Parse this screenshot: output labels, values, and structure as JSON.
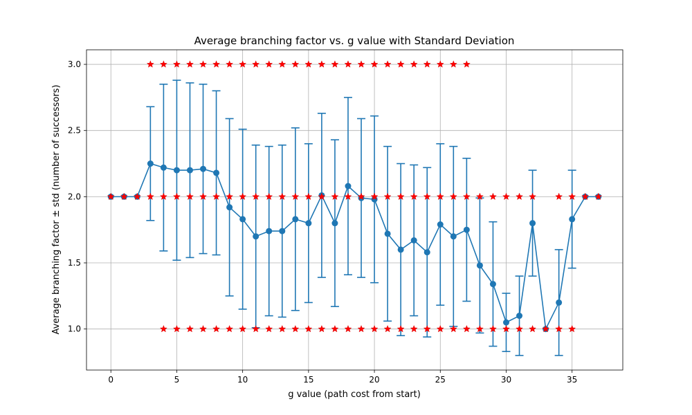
{
  "chart_data": {
    "type": "line",
    "title": "Average branching factor vs. g value with Standard Deviation",
    "xlabel": "g value (path cost from start)",
    "ylabel": "Average branching factor ± std (number of successors)",
    "xlim": [
      -1.85,
      38.85
    ],
    "ylim": [
      0.69,
      3.11
    ],
    "xticks": [
      0,
      5,
      10,
      15,
      20,
      25,
      30,
      35
    ],
    "yticks": [
      1.0,
      1.5,
      2.0,
      2.5,
      3.0
    ],
    "xtick_labels": [
      "0",
      "5",
      "10",
      "15",
      "20",
      "25",
      "30",
      "35"
    ],
    "ytick_labels": [
      "1.0",
      "1.5",
      "2.0",
      "2.5",
      "3.0"
    ],
    "grid": true,
    "series": [
      {
        "color": "#1f77b4",
        "marker": "circle",
        "x": [
          0,
          1,
          2,
          3,
          4,
          5,
          6,
          7,
          8,
          9,
          10,
          11,
          12,
          13,
          14,
          15,
          16,
          17,
          18,
          19,
          20,
          21,
          22,
          23,
          24,
          25,
          26,
          27,
          28,
          29,
          30,
          31,
          32,
          33,
          34,
          35,
          36,
          37
        ],
        "y": [
          2.0,
          2.0,
          2.0,
          2.25,
          2.22,
          2.2,
          2.2,
          2.21,
          2.18,
          1.92,
          1.83,
          1.7,
          1.74,
          1.74,
          1.83,
          1.8,
          2.01,
          1.8,
          2.08,
          1.99,
          1.98,
          1.72,
          1.6,
          1.67,
          1.58,
          1.79,
          1.7,
          1.75,
          1.48,
          1.34,
          1.05,
          1.1,
          1.8,
          1.0,
          1.2,
          1.83,
          2.0,
          2.0
        ],
        "std": [
          0,
          0,
          0,
          0.43,
          0.63,
          0.68,
          0.66,
          0.64,
          0.62,
          0.67,
          0.68,
          0.69,
          0.64,
          0.65,
          0.69,
          0.6,
          0.62,
          0.63,
          0.67,
          0.6,
          0.63,
          0.66,
          0.65,
          0.57,
          0.64,
          0.61,
          0.68,
          0.54,
          0.51,
          0.47,
          0.22,
          0.3,
          0.4,
          0,
          0.4,
          0.37,
          0,
          0
        ]
      },
      {
        "color": "#ff0000",
        "marker": "star",
        "points": [
          {
            "x": 0,
            "y": 2.0
          },
          {
            "x": 1,
            "y": 2.0
          },
          {
            "x": 2,
            "y": 2.0
          },
          {
            "x": 3,
            "y": 2.0
          },
          {
            "x": 3,
            "y": 3.0
          },
          {
            "x": 4,
            "y": 1.0
          },
          {
            "x": 4,
            "y": 2.0
          },
          {
            "x": 4,
            "y": 3.0
          },
          {
            "x": 5,
            "y": 1.0
          },
          {
            "x": 5,
            "y": 2.0
          },
          {
            "x": 5,
            "y": 3.0
          },
          {
            "x": 6,
            "y": 1.0
          },
          {
            "x": 6,
            "y": 2.0
          },
          {
            "x": 6,
            "y": 3.0
          },
          {
            "x": 7,
            "y": 1.0
          },
          {
            "x": 7,
            "y": 2.0
          },
          {
            "x": 7,
            "y": 3.0
          },
          {
            "x": 8,
            "y": 1.0
          },
          {
            "x": 8,
            "y": 2.0
          },
          {
            "x": 8,
            "y": 3.0
          },
          {
            "x": 9,
            "y": 1.0
          },
          {
            "x": 9,
            "y": 2.0
          },
          {
            "x": 9,
            "y": 3.0
          },
          {
            "x": 10,
            "y": 1.0
          },
          {
            "x": 10,
            "y": 2.0
          },
          {
            "x": 10,
            "y": 3.0
          },
          {
            "x": 11,
            "y": 1.0
          },
          {
            "x": 11,
            "y": 2.0
          },
          {
            "x": 11,
            "y": 3.0
          },
          {
            "x": 12,
            "y": 1.0
          },
          {
            "x": 12,
            "y": 2.0
          },
          {
            "x": 12,
            "y": 3.0
          },
          {
            "x": 13,
            "y": 1.0
          },
          {
            "x": 13,
            "y": 2.0
          },
          {
            "x": 13,
            "y": 3.0
          },
          {
            "x": 14,
            "y": 1.0
          },
          {
            "x": 14,
            "y": 2.0
          },
          {
            "x": 14,
            "y": 3.0
          },
          {
            "x": 15,
            "y": 1.0
          },
          {
            "x": 15,
            "y": 2.0
          },
          {
            "x": 15,
            "y": 3.0
          },
          {
            "x": 16,
            "y": 1.0
          },
          {
            "x": 16,
            "y": 2.0
          },
          {
            "x": 16,
            "y": 3.0
          },
          {
            "x": 17,
            "y": 1.0
          },
          {
            "x": 17,
            "y": 2.0
          },
          {
            "x": 17,
            "y": 3.0
          },
          {
            "x": 18,
            "y": 1.0
          },
          {
            "x": 18,
            "y": 2.0
          },
          {
            "x": 18,
            "y": 3.0
          },
          {
            "x": 19,
            "y": 1.0
          },
          {
            "x": 19,
            "y": 2.0
          },
          {
            "x": 19,
            "y": 3.0
          },
          {
            "x": 20,
            "y": 1.0
          },
          {
            "x": 20,
            "y": 2.0
          },
          {
            "x": 20,
            "y": 3.0
          },
          {
            "x": 21,
            "y": 1.0
          },
          {
            "x": 21,
            "y": 2.0
          },
          {
            "x": 21,
            "y": 3.0
          },
          {
            "x": 22,
            "y": 1.0
          },
          {
            "x": 22,
            "y": 2.0
          },
          {
            "x": 22,
            "y": 3.0
          },
          {
            "x": 23,
            "y": 1.0
          },
          {
            "x": 23,
            "y": 2.0
          },
          {
            "x": 23,
            "y": 3.0
          },
          {
            "x": 24,
            "y": 1.0
          },
          {
            "x": 24,
            "y": 2.0
          },
          {
            "x": 24,
            "y": 3.0
          },
          {
            "x": 25,
            "y": 1.0
          },
          {
            "x": 25,
            "y": 2.0
          },
          {
            "x": 25,
            "y": 3.0
          },
          {
            "x": 26,
            "y": 1.0
          },
          {
            "x": 26,
            "y": 2.0
          },
          {
            "x": 26,
            "y": 3.0
          },
          {
            "x": 27,
            "y": 1.0
          },
          {
            "x": 27,
            "y": 2.0
          },
          {
            "x": 27,
            "y": 3.0
          },
          {
            "x": 28,
            "y": 1.0
          },
          {
            "x": 28,
            "y": 2.0
          },
          {
            "x": 29,
            "y": 1.0
          },
          {
            "x": 29,
            "y": 2.0
          },
          {
            "x": 30,
            "y": 1.0
          },
          {
            "x": 30,
            "y": 2.0
          },
          {
            "x": 31,
            "y": 1.0
          },
          {
            "x": 31,
            "y": 2.0
          },
          {
            "x": 32,
            "y": 1.0
          },
          {
            "x": 32,
            "y": 2.0
          },
          {
            "x": 33,
            "y": 1.0
          },
          {
            "x": 34,
            "y": 1.0
          },
          {
            "x": 34,
            "y": 2.0
          },
          {
            "x": 35,
            "y": 1.0
          },
          {
            "x": 35,
            "y": 2.0
          },
          {
            "x": 36,
            "y": 2.0
          },
          {
            "x": 37,
            "y": 2.0
          }
        ]
      }
    ]
  }
}
